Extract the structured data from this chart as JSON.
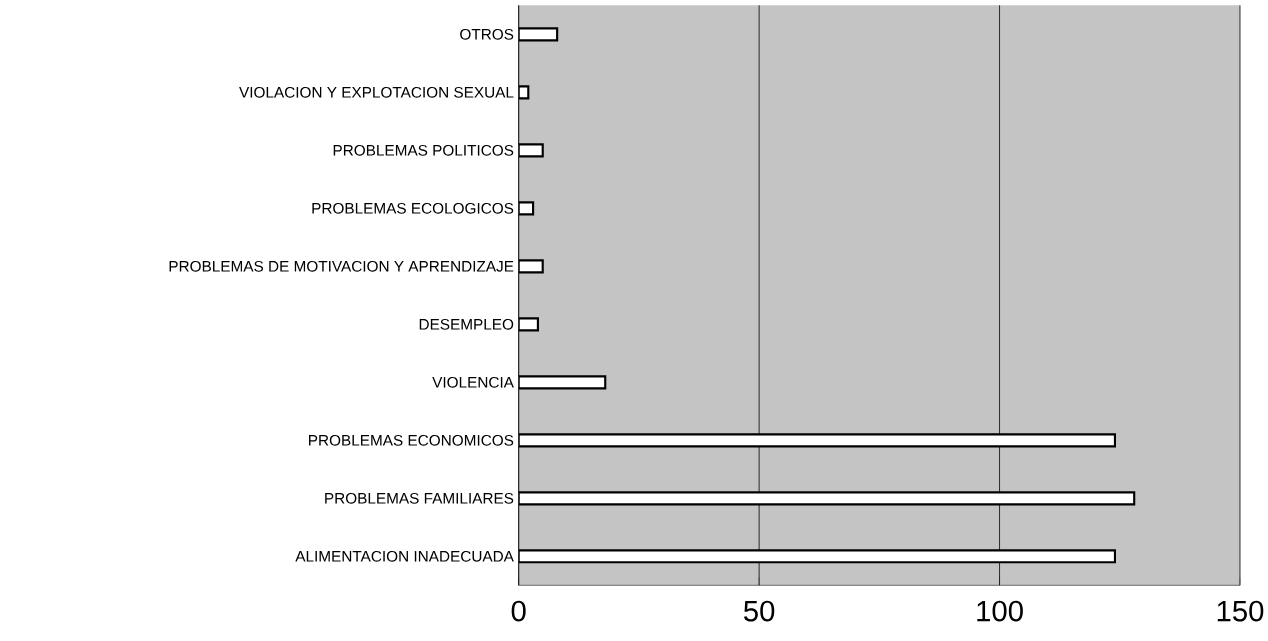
{
  "chart_data": {
    "type": "bar",
    "orientation": "horizontal",
    "categories": [
      "OTROS",
      "VIOLACION Y EXPLOTACION SEXUAL",
      "PROBLEMAS POLITICOS",
      "PROBLEMAS ECOLOGICOS",
      "PROBLEMAS DE MOTIVACION Y APRENDIZAJE",
      "DESEMPLEO",
      "VIOLENCIA",
      "PROBLEMAS ECONOMICOS",
      "PROBLEMAS FAMILIARES",
      "ALIMENTACION INADECUADA"
    ],
    "values": [
      8,
      2,
      5,
      3,
      5,
      4,
      18,
      124,
      128,
      124
    ],
    "color": "#ffffff",
    "xlim": [
      0,
      150
    ],
    "xticks": [
      0,
      50,
      100,
      150
    ],
    "grid": "x"
  }
}
